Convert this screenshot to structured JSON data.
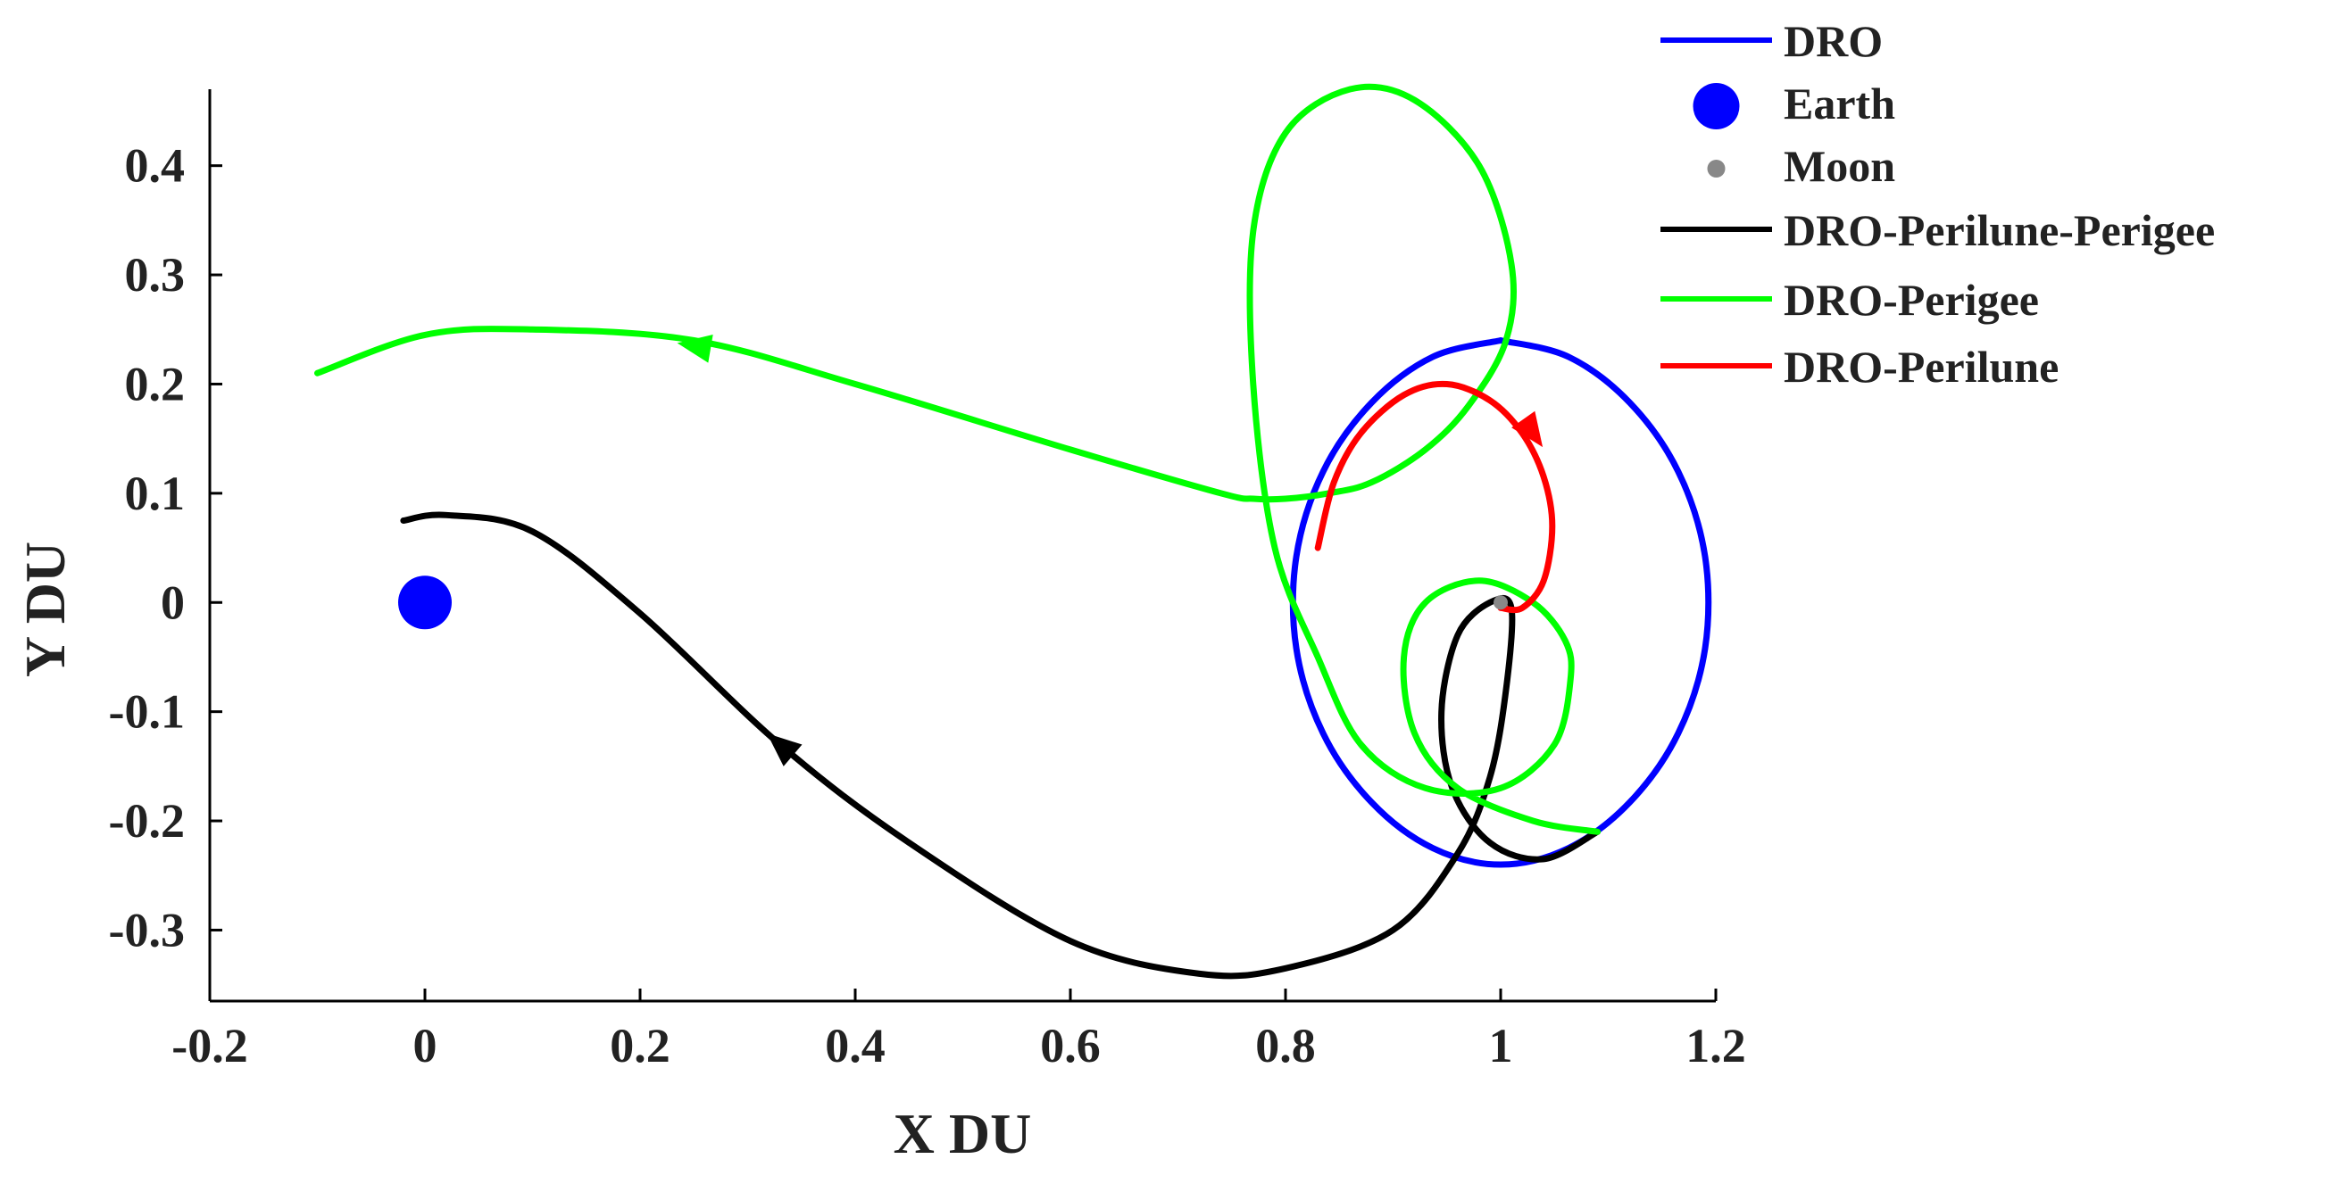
{
  "chart_data": {
    "type": "line",
    "xlabel": "X DU",
    "ylabel": "Y DU",
    "xlim": [
      -0.2,
      1.2
    ],
    "ylim": [
      -0.365,
      0.47
    ],
    "xticks": [
      "-0.2",
      "0",
      "0.2",
      "0.4",
      "0.6",
      "0.8",
      "1",
      "1.2"
    ],
    "yticks": [
      "-0.3",
      "-0.2",
      "-0.1",
      "0",
      "0.1",
      "0.2",
      "0.3",
      "0.4"
    ],
    "legend_position": "top-right-outside",
    "series": [
      {
        "name": "DRO",
        "kind": "line",
        "color": "#0000ff",
        "x": [
          1.0,
          1.063,
          1.12,
          1.165,
          1.19,
          1.19,
          1.165,
          1.12,
          1.063,
          1.0,
          0.937,
          0.88,
          0.835,
          0.81,
          0.81,
          0.835,
          0.88,
          0.937,
          1.0
        ],
        "y": [
          0.24,
          0.225,
          0.183,
          0.12,
          0.042,
          -0.042,
          -0.12,
          -0.183,
          -0.225,
          -0.24,
          -0.225,
          -0.183,
          -0.12,
          -0.042,
          0.042,
          0.12,
          0.183,
          0.225,
          0.24
        ]
      },
      {
        "name": "Earth",
        "kind": "marker",
        "color": "#0000ff",
        "x": [
          0
        ],
        "y": [
          0
        ]
      },
      {
        "name": "Moon",
        "kind": "marker",
        "color": "#888888",
        "x": [
          1.0
        ],
        "y": [
          0
        ]
      },
      {
        "name": "DRO-Perilune-Perigee",
        "kind": "line",
        "color": "#000000",
        "x": [
          1.09,
          1.04,
          0.99,
          0.955,
          0.945,
          0.96,
          0.99,
          1.01,
          1.005,
          0.99,
          0.96,
          0.9,
          0.8,
          0.72,
          0.6,
          0.45,
          0.33,
          0.2,
          0.1,
          0.02,
          -0.02
        ],
        "y": [
          -0.21,
          -0.235,
          -0.22,
          -0.17,
          -0.1,
          -0.03,
          0.0,
          -0.005,
          -0.08,
          -0.16,
          -0.23,
          -0.3,
          -0.335,
          -0.34,
          -0.31,
          -0.22,
          -0.13,
          -0.01,
          0.065,
          0.08,
          0.075
        ],
        "arrow_at": [
          0.33,
          -0.13
        ]
      },
      {
        "name": "DRO-Perigee",
        "kind": "line",
        "color": "#00ff00",
        "x": [
          1.09,
          1.03,
          0.96,
          0.92,
          0.91,
          0.93,
          0.98,
          1.03,
          1.06,
          1.065,
          1.05,
          1.0,
          0.93,
          0.87,
          0.83,
          0.79,
          0.77,
          0.77,
          0.8,
          0.86,
          0.92,
          0.98,
          1.01,
          1.005,
          0.97,
          0.93,
          0.88,
          0.84,
          0.8,
          0.77,
          0.74,
          0.6,
          0.4,
          0.25,
          0.1,
          0.0,
          -0.1
        ],
        "y": [
          -0.21,
          -0.2,
          -0.17,
          -0.12,
          -0.05,
          0.0,
          0.02,
          0.0,
          -0.035,
          -0.07,
          -0.13,
          -0.17,
          -0.17,
          -0.13,
          -0.05,
          0.05,
          0.2,
          0.34,
          0.43,
          0.47,
          0.46,
          0.4,
          0.31,
          0.24,
          0.18,
          0.14,
          0.11,
          0.1,
          0.095,
          0.095,
          0.1,
          0.14,
          0.2,
          0.24,
          0.25,
          0.245,
          0.21
        ],
        "arrow_at": [
          0.25,
          0.235
        ]
      },
      {
        "name": "DRO-Perilune",
        "kind": "line",
        "color": "#ff0000",
        "x": [
          0.83,
          0.845,
          0.87,
          0.91,
          0.95,
          0.99,
          1.02,
          1.04,
          1.048,
          1.04,
          1.02,
          1.0
        ],
        "y": [
          0.05,
          0.11,
          0.155,
          0.19,
          0.2,
          0.185,
          0.155,
          0.115,
          0.07,
          0.02,
          -0.005,
          -0.005
        ],
        "arrow_at": [
          1.03,
          0.155
        ]
      }
    ]
  }
}
